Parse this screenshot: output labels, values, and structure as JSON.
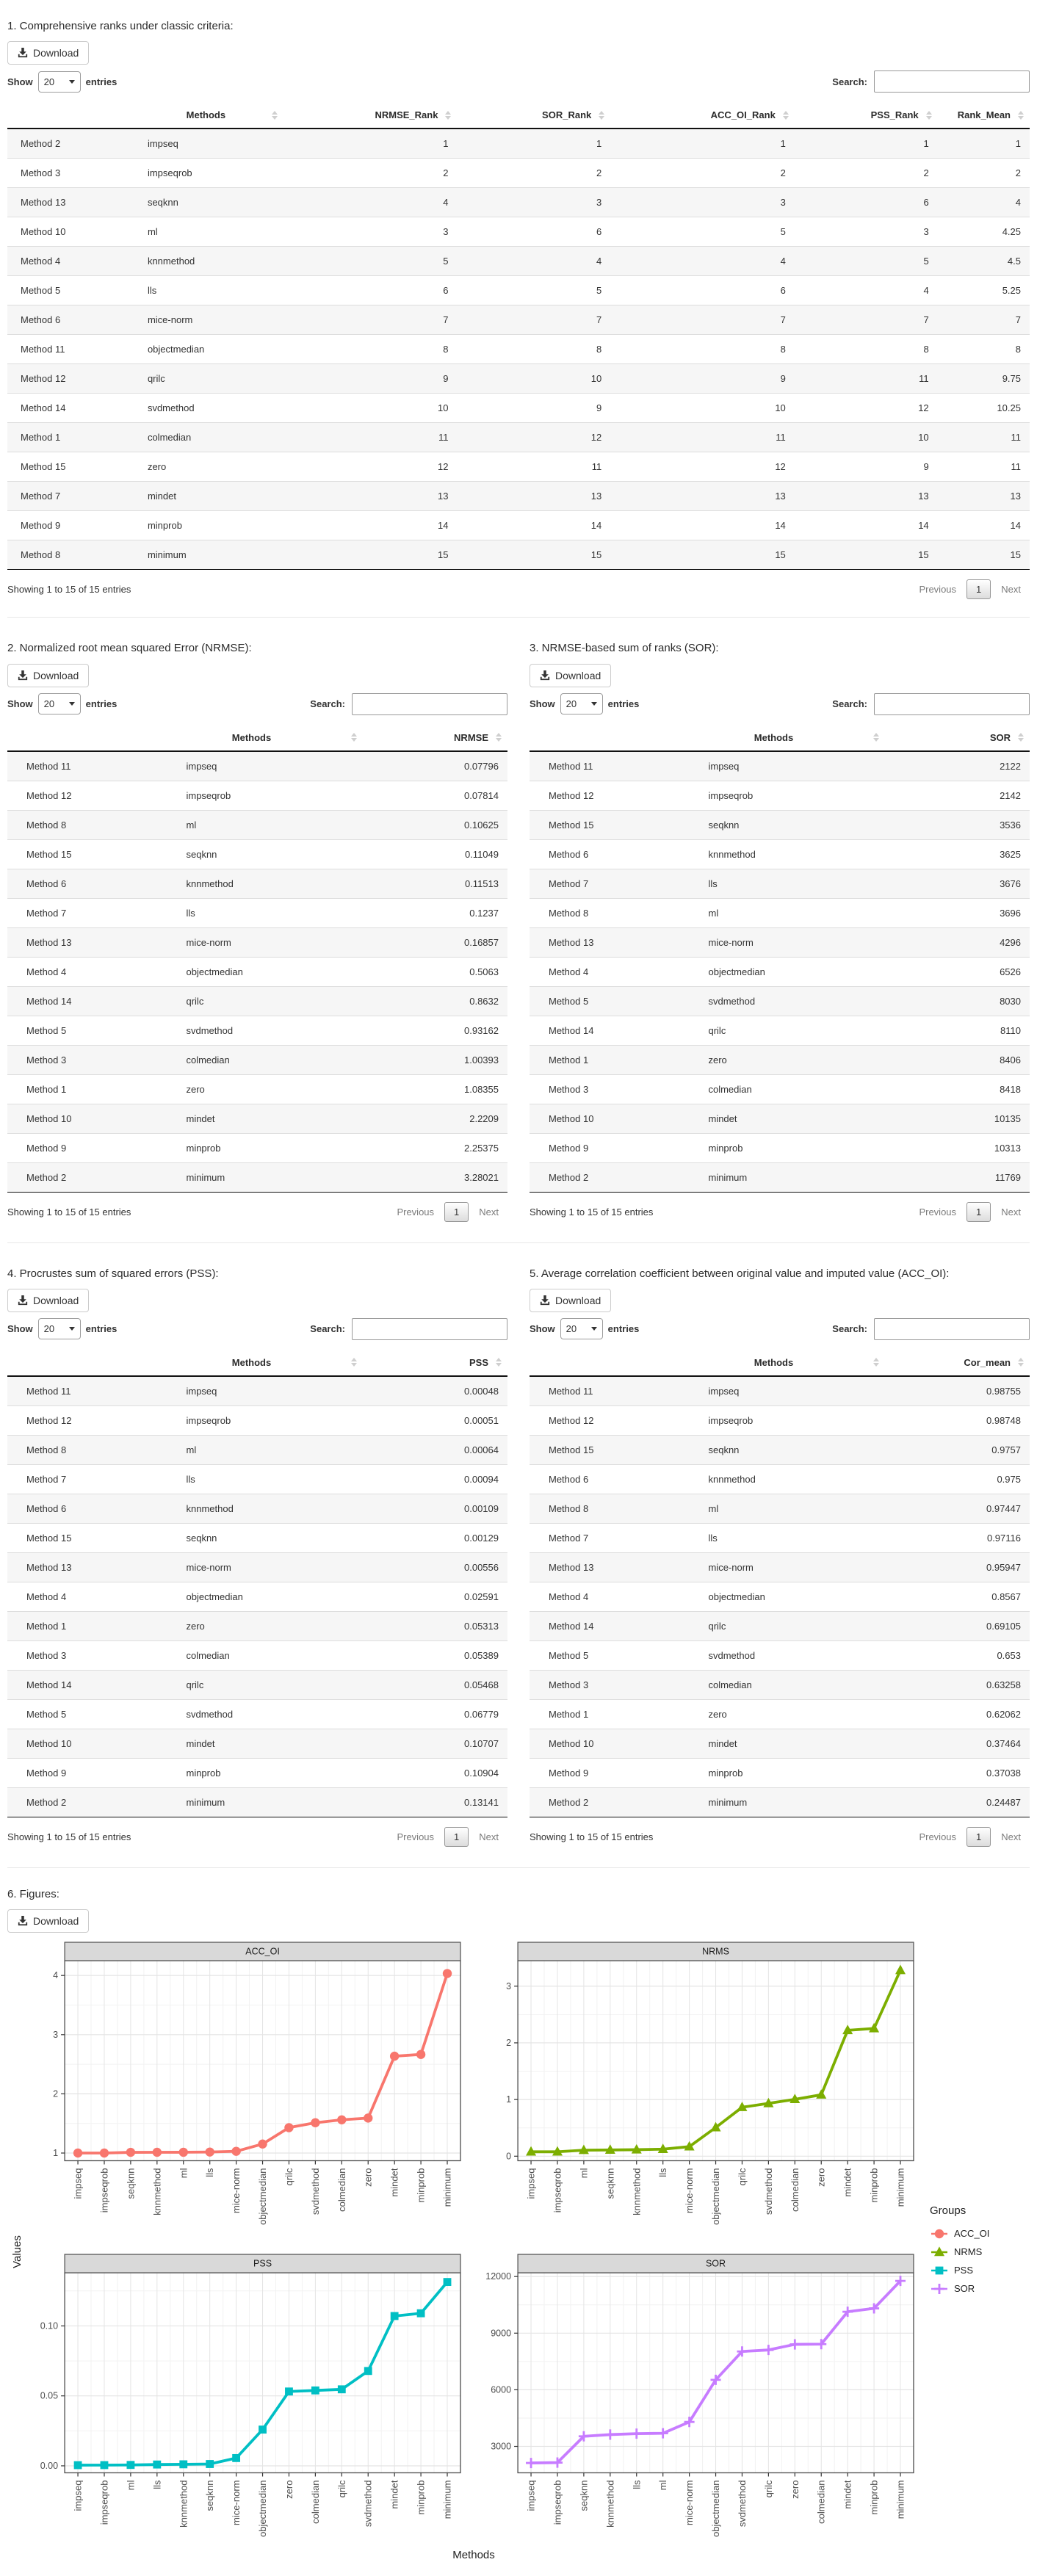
{
  "ui": {
    "download_label": "Download",
    "show_label": "Show",
    "page_size": "20",
    "entries_label": "entries",
    "search_label": "Search:",
    "search_value": "",
    "info_text": "Showing 1 to 15 of 15 entries",
    "previous_label": "Previous",
    "page_number": "1",
    "next_label": "Next"
  },
  "sections": {
    "s1": {
      "title": "1. Comprehensive ranks under classic criteria:"
    },
    "s2": {
      "title": "2. Normalized root mean squared Error (NRMSE):"
    },
    "s3": {
      "title": "3. NRMSE-based sum of ranks (SOR):"
    },
    "s4": {
      "title": "4. Procrustes sum of squared errors (PSS):"
    },
    "s5": {
      "title": "5. Average correlation coefficient between original value and imputed value (ACC_OI):"
    },
    "s6": {
      "title": "6. Figures:"
    }
  },
  "tables": {
    "t1": {
      "columns": [
        "",
        "Methods",
        "NRMSE_Rank",
        "SOR_Rank",
        "ACC_OI_Rank",
        "PSS_Rank",
        "Rank_Mean"
      ],
      "rows": [
        [
          "Method 2",
          "impseq",
          "1",
          "1",
          "1",
          "1",
          "1"
        ],
        [
          "Method 3",
          "impseqrob",
          "2",
          "2",
          "2",
          "2",
          "2"
        ],
        [
          "Method 13",
          "seqknn",
          "4",
          "3",
          "3",
          "6",
          "4"
        ],
        [
          "Method 10",
          "ml",
          "3",
          "6",
          "5",
          "3",
          "4.25"
        ],
        [
          "Method 4",
          "knnmethod",
          "5",
          "4",
          "4",
          "5",
          "4.5"
        ],
        [
          "Method 5",
          "lls",
          "6",
          "5",
          "6",
          "4",
          "5.25"
        ],
        [
          "Method 6",
          "mice-norm",
          "7",
          "7",
          "7",
          "7",
          "7"
        ],
        [
          "Method 11",
          "objectmedian",
          "8",
          "8",
          "8",
          "8",
          "8"
        ],
        [
          "Method 12",
          "qrilc",
          "9",
          "10",
          "9",
          "11",
          "9.75"
        ],
        [
          "Method 14",
          "svdmethod",
          "10",
          "9",
          "10",
          "12",
          "10.25"
        ],
        [
          "Method 1",
          "colmedian",
          "11",
          "12",
          "11",
          "10",
          "11"
        ],
        [
          "Method 15",
          "zero",
          "12",
          "11",
          "12",
          "9",
          "11"
        ],
        [
          "Method 7",
          "mindet",
          "13",
          "13",
          "13",
          "13",
          "13"
        ],
        [
          "Method 9",
          "minprob",
          "14",
          "14",
          "14",
          "14",
          "14"
        ],
        [
          "Method 8",
          "minimum",
          "15",
          "15",
          "15",
          "15",
          "15"
        ]
      ]
    },
    "t2": {
      "columns": [
        "",
        "Methods",
        "NRMSE"
      ],
      "rows": [
        [
          "Method 11",
          "impseq",
          "0.07796"
        ],
        [
          "Method 12",
          "impseqrob",
          "0.07814"
        ],
        [
          "Method 8",
          "ml",
          "0.10625"
        ],
        [
          "Method 15",
          "seqknn",
          "0.11049"
        ],
        [
          "Method 6",
          "knnmethod",
          "0.11513"
        ],
        [
          "Method 7",
          "lls",
          "0.1237"
        ],
        [
          "Method 13",
          "mice-norm",
          "0.16857"
        ],
        [
          "Method 4",
          "objectmedian",
          "0.5063"
        ],
        [
          "Method 14",
          "qrilc",
          "0.8632"
        ],
        [
          "Method 5",
          "svdmethod",
          "0.93162"
        ],
        [
          "Method 3",
          "colmedian",
          "1.00393"
        ],
        [
          "Method 1",
          "zero",
          "1.08355"
        ],
        [
          "Method 10",
          "mindet",
          "2.2209"
        ],
        [
          "Method 9",
          "minprob",
          "2.25375"
        ],
        [
          "Method 2",
          "minimum",
          "3.28021"
        ]
      ]
    },
    "t3": {
      "columns": [
        "",
        "Methods",
        "SOR"
      ],
      "rows": [
        [
          "Method 11",
          "impseq",
          "2122"
        ],
        [
          "Method 12",
          "impseqrob",
          "2142"
        ],
        [
          "Method 15",
          "seqknn",
          "3536"
        ],
        [
          "Method 6",
          "knnmethod",
          "3625"
        ],
        [
          "Method 7",
          "lls",
          "3676"
        ],
        [
          "Method 8",
          "ml",
          "3696"
        ],
        [
          "Method 13",
          "mice-norm",
          "4296"
        ],
        [
          "Method 4",
          "objectmedian",
          "6526"
        ],
        [
          "Method 5",
          "svdmethod",
          "8030"
        ],
        [
          "Method 14",
          "qrilc",
          "8110"
        ],
        [
          "Method 1",
          "zero",
          "8406"
        ],
        [
          "Method 3",
          "colmedian",
          "8418"
        ],
        [
          "Method 10",
          "mindet",
          "10135"
        ],
        [
          "Method 9",
          "minprob",
          "10313"
        ],
        [
          "Method 2",
          "minimum",
          "11769"
        ]
      ]
    },
    "t4": {
      "columns": [
        "",
        "Methods",
        "PSS"
      ],
      "rows": [
        [
          "Method 11",
          "impseq",
          "0.00048"
        ],
        [
          "Method 12",
          "impseqrob",
          "0.00051"
        ],
        [
          "Method 8",
          "ml",
          "0.00064"
        ],
        [
          "Method 7",
          "lls",
          "0.00094"
        ],
        [
          "Method 6",
          "knnmethod",
          "0.00109"
        ],
        [
          "Method 15",
          "seqknn",
          "0.00129"
        ],
        [
          "Method 13",
          "mice-norm",
          "0.00556"
        ],
        [
          "Method 4",
          "objectmedian",
          "0.02591"
        ],
        [
          "Method 1",
          "zero",
          "0.05313"
        ],
        [
          "Method 3",
          "colmedian",
          "0.05389"
        ],
        [
          "Method 14",
          "qrilc",
          "0.05468"
        ],
        [
          "Method 5",
          "svdmethod",
          "0.06779"
        ],
        [
          "Method 10",
          "mindet",
          "0.10707"
        ],
        [
          "Method 9",
          "minprob",
          "0.10904"
        ],
        [
          "Method 2",
          "minimum",
          "0.13141"
        ]
      ]
    },
    "t5": {
      "columns": [
        "",
        "Methods",
        "Cor_mean"
      ],
      "rows": [
        [
          "Method 11",
          "impseq",
          "0.98755"
        ],
        [
          "Method 12",
          "impseqrob",
          "0.98748"
        ],
        [
          "Method 15",
          "seqknn",
          "0.9757"
        ],
        [
          "Method 6",
          "knnmethod",
          "0.975"
        ],
        [
          "Method 8",
          "ml",
          "0.97447"
        ],
        [
          "Method 7",
          "lls",
          "0.97116"
        ],
        [
          "Method 13",
          "mice-norm",
          "0.95947"
        ],
        [
          "Method 4",
          "objectmedian",
          "0.8567"
        ],
        [
          "Method 14",
          "qrilc",
          "0.69105"
        ],
        [
          "Method 5",
          "svdmethod",
          "0.653"
        ],
        [
          "Method 3",
          "colmedian",
          "0.63258"
        ],
        [
          "Method 1",
          "zero",
          "0.62062"
        ],
        [
          "Method 10",
          "mindet",
          "0.37464"
        ],
        [
          "Method 9",
          "minprob",
          "0.37038"
        ],
        [
          "Method 2",
          "minimum",
          "0.24487"
        ]
      ]
    }
  },
  "figure": {
    "ylabel": "Values",
    "xlabel": "Methods",
    "legend_title": "Groups",
    "legend": [
      {
        "label": "ACC_OI",
        "color": "#F8766D",
        "marker": "circle"
      },
      {
        "label": "NRMS",
        "color": "#7CAE00",
        "marker": "triangle"
      },
      {
        "label": "PSS",
        "color": "#00BFC4",
        "marker": "square"
      },
      {
        "label": "SOR",
        "color": "#C77CFF",
        "marker": "plus"
      }
    ]
  },
  "chart_data": [
    {
      "type": "line",
      "title": "ACC_OI",
      "color": "#F8766D",
      "marker": "circle",
      "ylabel": "Values",
      "ylim": [
        0.87,
        4.25
      ],
      "yticks": [
        1,
        2,
        3,
        4
      ],
      "ytick_labels": [
        "1",
        "2",
        "3",
        "4"
      ],
      "grid": true,
      "legend_position": "right",
      "categories": [
        "impseq",
        "impseqrob",
        "seqknn",
        "knnmethod",
        "ml",
        "lls",
        "mice-norm",
        "objectmedian",
        "qrilc",
        "svdmethod",
        "colmedian",
        "zero",
        "mindet",
        "minprob",
        "minimum"
      ],
      "values": [
        1.0,
        1.0001,
        1.0121,
        1.0129,
        1.0134,
        1.0169,
        1.0293,
        1.1527,
        1.4291,
        1.5124,
        1.5612,
        1.5912,
        2.636,
        2.6663,
        4.033
      ]
    },
    {
      "type": "line",
      "title": "NRMS",
      "color": "#7CAE00",
      "marker": "triangle",
      "ylabel": "Values",
      "ylim": [
        -0.08,
        3.45
      ],
      "yticks": [
        0,
        1,
        2,
        3
      ],
      "ytick_labels": [
        "0",
        "1",
        "2",
        "3"
      ],
      "grid": true,
      "legend_position": "right",
      "categories": [
        "impseq",
        "impseqrob",
        "ml",
        "seqknn",
        "knnmethod",
        "lls",
        "mice-norm",
        "objectmedian",
        "qrilc",
        "svdmethod",
        "colmedian",
        "zero",
        "mindet",
        "minprob",
        "minimum"
      ],
      "values": [
        0.07796,
        0.07814,
        0.10625,
        0.11049,
        0.11513,
        0.1237,
        0.16857,
        0.5063,
        0.8632,
        0.93162,
        1.00393,
        1.08355,
        2.2209,
        2.25375,
        3.28021
      ]
    },
    {
      "type": "line",
      "title": "PSS",
      "color": "#00BFC4",
      "marker": "square",
      "ylabel": "Values",
      "ylim": [
        -0.005,
        0.138
      ],
      "yticks": [
        0,
        0.05,
        0.1
      ],
      "ytick_labels": [
        "0.00",
        "0.05",
        "0.10"
      ],
      "grid": true,
      "legend_position": "right",
      "categories": [
        "impseq",
        "impseqrob",
        "ml",
        "lls",
        "knnmethod",
        "seqknn",
        "mice-norm",
        "objectmedian",
        "zero",
        "colmedian",
        "qrilc",
        "svdmethod",
        "mindet",
        "minprob",
        "minimum"
      ],
      "values": [
        0.00048,
        0.00051,
        0.00064,
        0.00094,
        0.00109,
        0.00129,
        0.00556,
        0.02591,
        0.05313,
        0.05389,
        0.05468,
        0.06779,
        0.10707,
        0.10904,
        0.13141
      ]
    },
    {
      "type": "line",
      "title": "SOR",
      "color": "#C77CFF",
      "marker": "plus",
      "ylabel": "Values",
      "xlabel": "Methods",
      "ylim": [
        1600,
        12200
      ],
      "yticks": [
        3000,
        6000,
        9000,
        12000
      ],
      "ytick_labels": [
        "3000",
        "6000",
        "9000",
        "12000"
      ],
      "grid": true,
      "legend_position": "right",
      "categories": [
        "impseq",
        "impseqrob",
        "seqknn",
        "knnmethod",
        "lls",
        "ml",
        "mice-norm",
        "objectmedian",
        "svdmethod",
        "qrilc",
        "zero",
        "colmedian",
        "mindet",
        "minprob",
        "minimum"
      ],
      "values": [
        2122,
        2142,
        3536,
        3625,
        3676,
        3696,
        4296,
        6526,
        8030,
        8110,
        8406,
        8418,
        10135,
        10313,
        11769
      ]
    }
  ]
}
